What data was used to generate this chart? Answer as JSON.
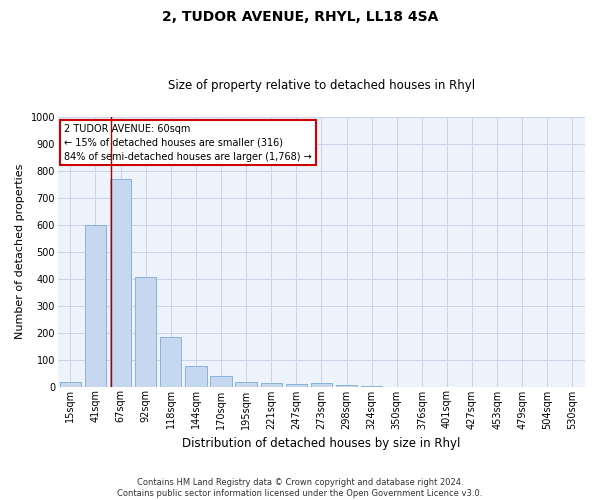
{
  "title": "2, TUDOR AVENUE, RHYL, LL18 4SA",
  "subtitle": "Size of property relative to detached houses in Rhyl",
  "xlabel": "Distribution of detached houses by size in Rhyl",
  "ylabel": "Number of detached properties",
  "categories": [
    "15sqm",
    "41sqm",
    "67sqm",
    "92sqm",
    "118sqm",
    "144sqm",
    "170sqm",
    "195sqm",
    "221sqm",
    "247sqm",
    "273sqm",
    "298sqm",
    "324sqm",
    "350sqm",
    "376sqm",
    "401sqm",
    "427sqm",
    "453sqm",
    "479sqm",
    "504sqm",
    "530sqm"
  ],
  "values": [
    15,
    600,
    770,
    405,
    185,
    75,
    38,
    18,
    14,
    10,
    13,
    6,
    2,
    0,
    0,
    0,
    0,
    0,
    0,
    0,
    0
  ],
  "bar_color": "#c5d8f0",
  "bar_edge_color": "#7aadd4",
  "vline_x_index": 1.6,
  "vline_color": "#aa0000",
  "ylim": [
    0,
    1000
  ],
  "yticks": [
    0,
    100,
    200,
    300,
    400,
    500,
    600,
    700,
    800,
    900,
    1000
  ],
  "annotation_text": "2 TUDOR AVENUE: 60sqm\n← 15% of detached houses are smaller (316)\n84% of semi-detached houses are larger (1,768) →",
  "annotation_box_facecolor": "#ffffff",
  "annotation_box_edgecolor": "#cc0000",
  "footer": "Contains HM Land Registry data © Crown copyright and database right 2024.\nContains public sector information licensed under the Open Government Licence v3.0.",
  "grid_color": "#c8d4e8",
  "plot_bg_color": "#eef2fa",
  "title_fontsize": 10,
  "subtitle_fontsize": 8.5,
  "ylabel_fontsize": 8,
  "xlabel_fontsize": 8.5,
  "tick_fontsize": 7,
  "ann_fontsize": 7,
  "footer_fontsize": 6
}
